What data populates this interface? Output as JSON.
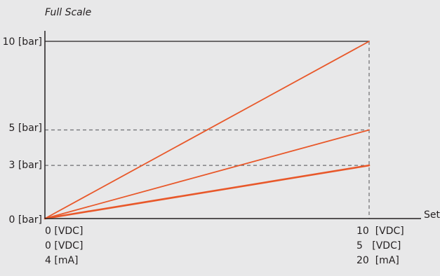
{
  "chart_data": {
    "type": "line",
    "title": "Full Scale",
    "xlabel": "Set",
    "y_ticks": [
      "0 [bar]",
      "3 [bar]",
      "5 [bar]",
      "10 [bar]"
    ],
    "x_start_labels": [
      "0 [VDC]",
      "0 [VDC]",
      "4 [mA]"
    ],
    "x_end_labels": [
      "10  [VDC]",
      "5   [VDC]",
      "20  [mA]"
    ],
    "x": [
      0,
      10
    ],
    "series": [
      {
        "values": [
          0,
          10
        ]
      },
      {
        "values": [
          0,
          5
        ]
      },
      {
        "values": [
          0,
          3
        ]
      }
    ],
    "xlim": [
      0,
      10
    ],
    "ylim": [
      0,
      10
    ],
    "line_color": "#e8582a",
    "axis_color": "#231f20",
    "grid_color": "#6d6e71",
    "background": "#e8e8e9"
  }
}
